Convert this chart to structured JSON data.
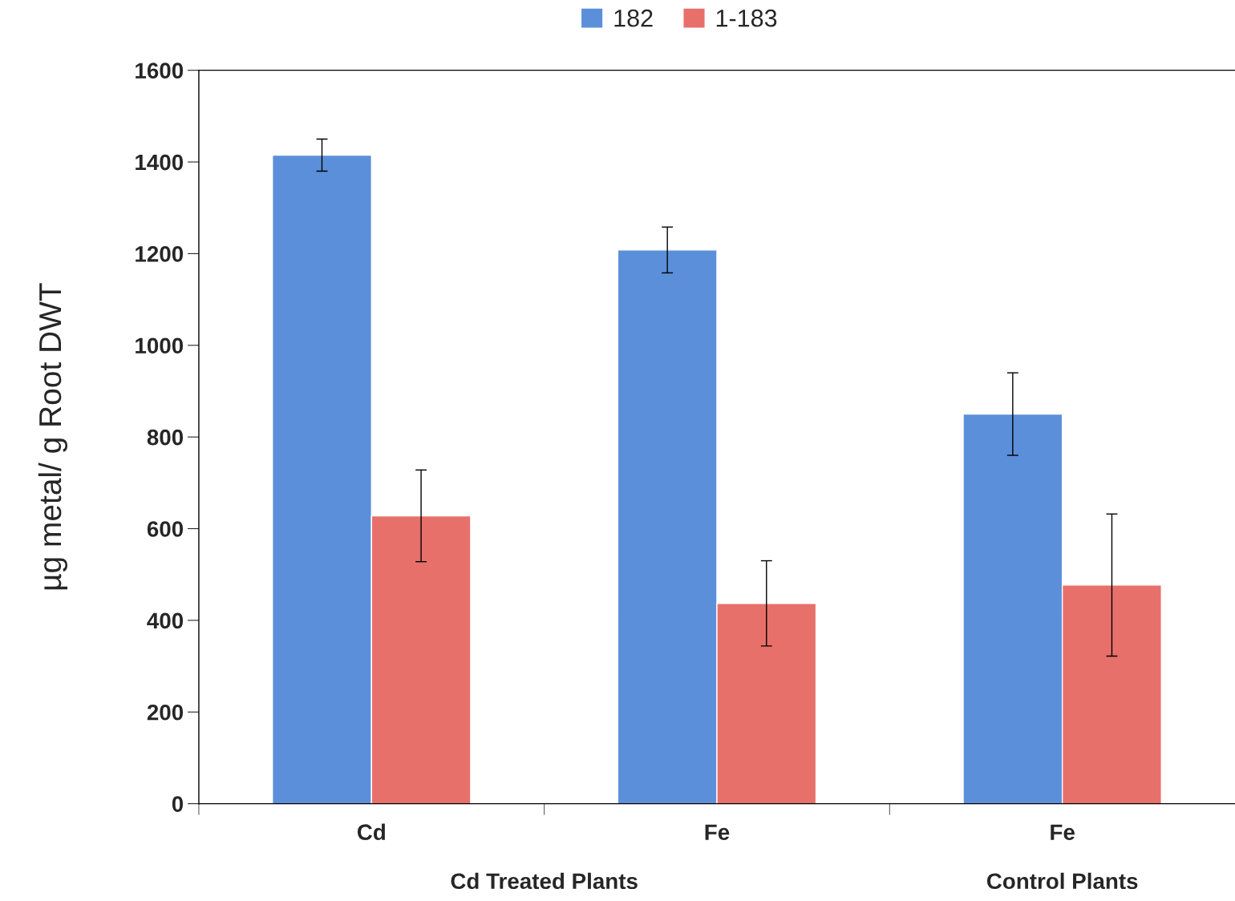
{
  "chart_data": {
    "type": "bar",
    "ylabel": "µg metal/ g Root DWT",
    "categories": [
      "Cd",
      "Fe",
      "Fe"
    ],
    "series": [
      {
        "name": "182",
        "color": "#5b8fd9",
        "values": [
          1415,
          1208,
          850
        ],
        "errors": [
          35,
          50,
          90
        ]
      },
      {
        "name": "1-183",
        "color": "#e8706b",
        "values": [
          628,
          437,
          477
        ],
        "errors": [
          100,
          93,
          155
        ]
      }
    ],
    "ylim": [
      0,
      1600
    ],
    "yticks": [
      0,
      200,
      400,
      600,
      800,
      1000,
      1200,
      1400,
      1600
    ],
    "grid": false,
    "legend": "top",
    "annotations": [
      "Cd Treated Plants",
      "Control Plants"
    ]
  }
}
